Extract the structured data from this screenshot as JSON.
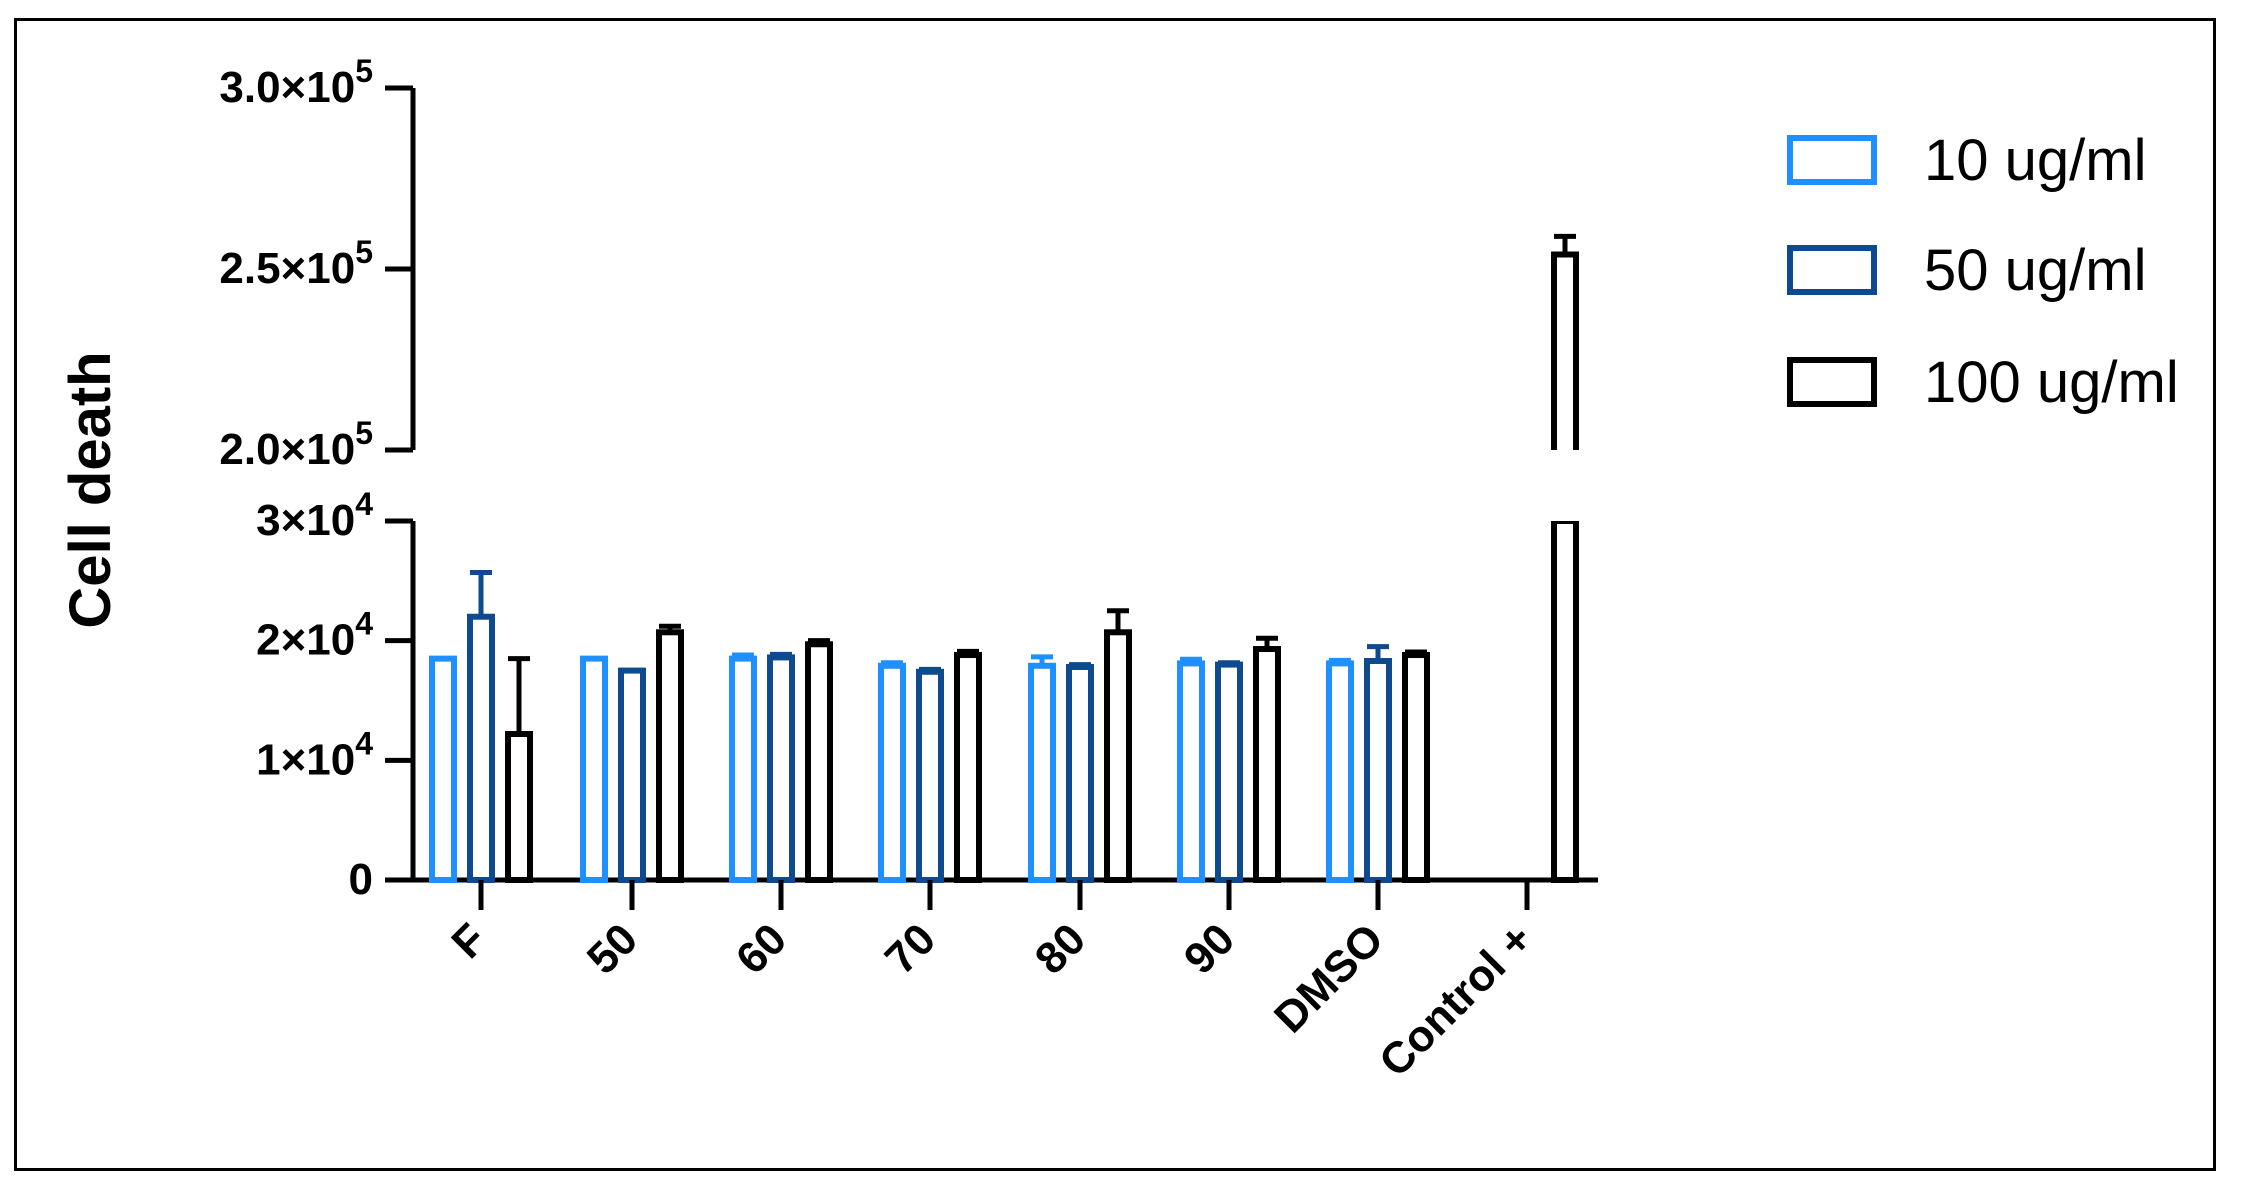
{
  "chart_data": {
    "type": "bar",
    "title": "",
    "xlabel": "",
    "ylabel": "Cell death",
    "categories": [
      "F",
      "50",
      "60",
      "70",
      "80",
      "90",
      "DMSO",
      "Control +"
    ],
    "series": [
      {
        "name": "10 ug/ml",
        "color": "#1E90FF",
        "values": [
          18500,
          18500,
          18500,
          17900,
          17900,
          18100,
          18100,
          null
        ],
        "errors": [
          0,
          0,
          300,
          250,
          750,
          350,
          250,
          null
        ]
      },
      {
        "name": "50 ug/ml",
        "color": "#0D4A8F",
        "values": [
          22000,
          17500,
          18600,
          17400,
          17800,
          18000,
          18300,
          null
        ],
        "errors": [
          3700,
          0,
          250,
          200,
          200,
          150,
          1200,
          null
        ]
      },
      {
        "name": "100 ug/ml",
        "color": "#000000",
        "values": [
          12200,
          20700,
          19700,
          18800,
          20700,
          19300,
          18800,
          254000
        ],
        "errors": [
          6300,
          500,
          300,
          300,
          1800,
          900,
          250,
          5000
        ]
      }
    ],
    "y_axis": {
      "broken": true,
      "lower_segment": {
        "range": [
          0,
          30000
        ],
        "ticks": [
          0,
          10000,
          20000,
          30000
        ]
      },
      "upper_segment": {
        "range": [
          200000,
          300000
        ],
        "ticks": [
          200000,
          250000,
          300000
        ]
      },
      "tick_labels": {
        "0": {
          "mantissa": "0",
          "exp": ""
        },
        "10000": {
          "mantissa": "1×10",
          "exp": "4"
        },
        "20000": {
          "mantissa": "2×10",
          "exp": "4"
        },
        "30000": {
          "mantissa": "3×10",
          "exp": "4"
        },
        "200000": {
          "mantissa": "2.0×10",
          "exp": "5"
        },
        "250000": {
          "mantissa": "2.5×10",
          "exp": "5"
        },
        "300000": {
          "mantissa": "3.0×10",
          "exp": "5"
        }
      }
    },
    "legend_position": "top-right",
    "grid": false
  }
}
